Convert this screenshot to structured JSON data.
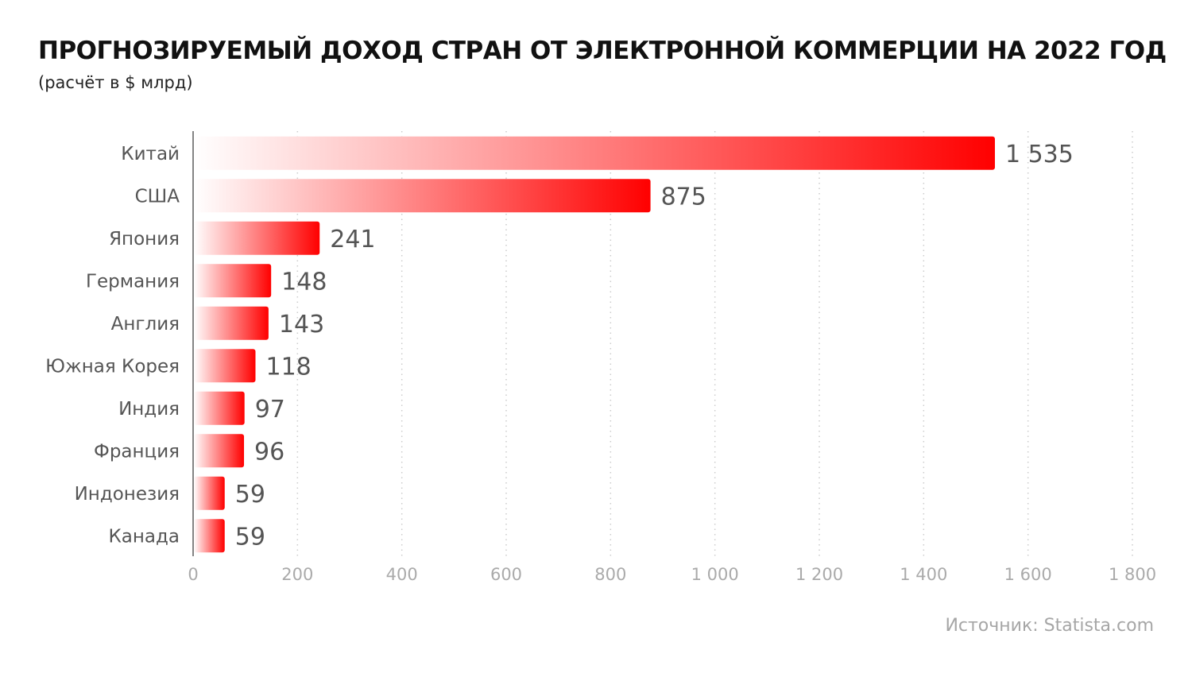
{
  "title": "ПРОГНОЗИРУЕМЫЙ ДОХОД СТРАН ОТ ЭЛЕКТРОННОЙ КОММЕРЦИИ НА 2022 ГОД",
  "subtitle": "(расчёт в $ млрд)",
  "source": "Источник: Statista.com",
  "colors": {
    "bar_end": "#ff0000",
    "bar_start": "#ffffff",
    "value_label": "#555555",
    "category_label": "#555555",
    "tick_label": "#aaaaaa",
    "grid": "#cccccc",
    "axis": "#333333"
  },
  "chart_data": {
    "type": "bar",
    "orientation": "horizontal",
    "categories": [
      "Китай",
      "США",
      "Япония",
      "Германия",
      "Англия",
      "Южная Корея",
      "Индия",
      "Франция",
      "Индонезия",
      "Канада"
    ],
    "values": [
      1535,
      875,
      241,
      148,
      143,
      118,
      97,
      96,
      59,
      59
    ],
    "value_labels": [
      "1 535",
      "875",
      "241",
      "148",
      "143",
      "118",
      "97",
      "96",
      "59",
      "59"
    ],
    "xlim": [
      0,
      1800
    ],
    "xticks": [
      0,
      200,
      400,
      600,
      800,
      1000,
      1200,
      1400,
      1600,
      1800
    ],
    "xtick_labels": [
      "0",
      "200",
      "400",
      "600",
      "800",
      "1 000",
      "1 200",
      "1 400",
      "1 600",
      "1 800"
    ],
    "grid": "vertical-dotted",
    "legend": "none"
  }
}
